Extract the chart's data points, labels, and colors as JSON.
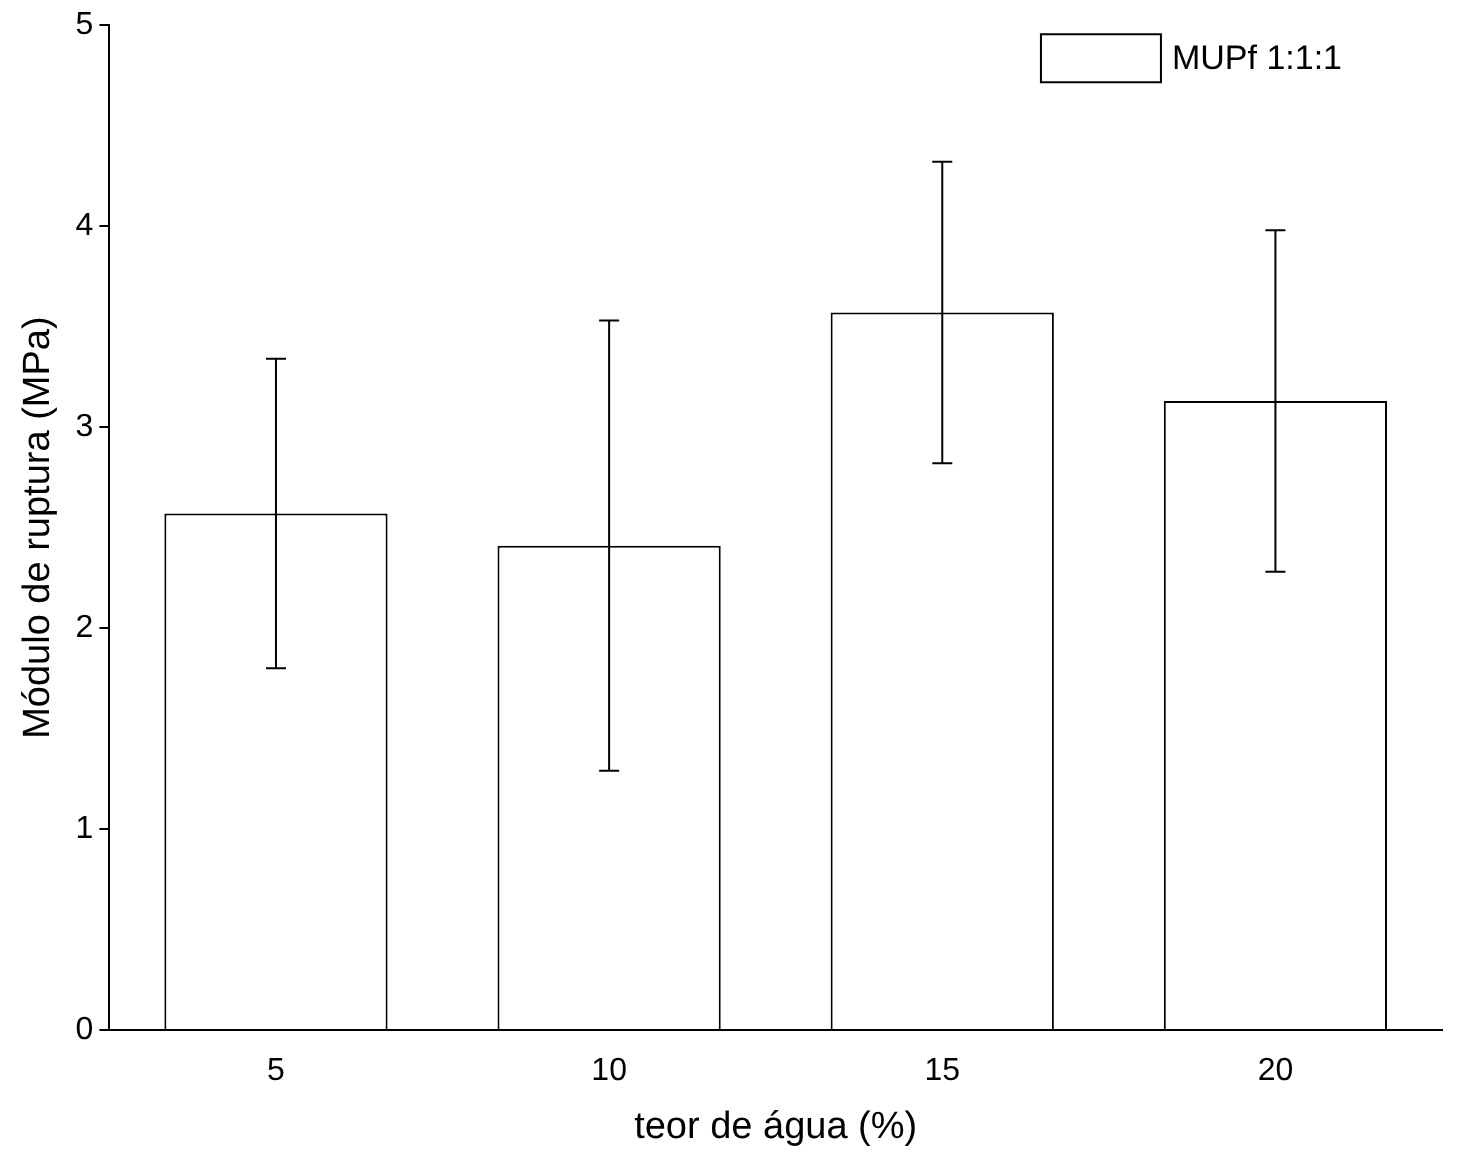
{
  "chart_data": {
    "type": "bar",
    "xlabel": "teor de água (%)",
    "ylabel": "Módulo de ruptura (MPa)",
    "categories": [
      "5",
      "10",
      "15",
      "20"
    ],
    "series": [
      {
        "name": "MUPf 1:1:1",
        "color": "#ffffff",
        "values": [
          2.57,
          2.41,
          3.57,
          3.13
        ],
        "errors": [
          0.77,
          1.12,
          0.75,
          0.85
        ]
      }
    ],
    "ylim": [
      0,
      5
    ],
    "yticks": [
      0,
      1,
      2,
      3,
      4,
      5
    ],
    "grid": false,
    "legend": "top right"
  }
}
